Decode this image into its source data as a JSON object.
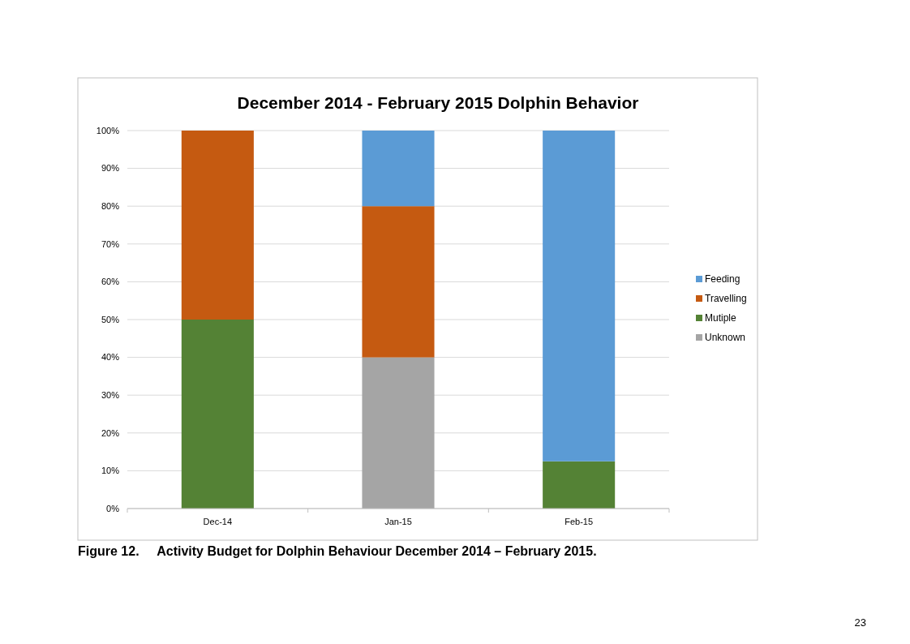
{
  "chart_data": {
    "type": "bar",
    "stacked": true,
    "title": "December 2014 - February 2015 Dolphin Behavior",
    "categories": [
      "Dec-14",
      "Jan-15",
      "Feb-15"
    ],
    "series": [
      {
        "name": "Unknown",
        "color": "#a5a5a5",
        "values": [
          0,
          40,
          0
        ]
      },
      {
        "name": "Mutiple",
        "color": "#548235",
        "values": [
          50,
          0,
          12.5
        ]
      },
      {
        "name": "Travelling",
        "color": "#c55a11",
        "values": [
          50,
          40,
          0
        ]
      },
      {
        "name": "Feeding",
        "color": "#5b9bd5",
        "values": [
          0,
          20,
          87.5
        ]
      }
    ],
    "ylim": [
      0,
      100
    ],
    "yticks": [
      {
        "value": 0,
        "label": "0%"
      },
      {
        "value": 10,
        "label": "10%"
      },
      {
        "value": 20,
        "label": "20%"
      },
      {
        "value": 30,
        "label": "30%"
      },
      {
        "value": 40,
        "label": "40%"
      },
      {
        "value": 50,
        "label": "50%"
      },
      {
        "value": 60,
        "label": "60%"
      },
      {
        "value": 70,
        "label": "70%"
      },
      {
        "value": 80,
        "label": "80%"
      },
      {
        "value": 90,
        "label": "90%"
      },
      {
        "value": 100,
        "label": "100%"
      }
    ],
    "grid": "y",
    "legend": "right",
    "annotations": [
      "Figure 12.     Activity Budget for Dolphin Behaviour December 2014 – February 2015.",
      "23"
    ]
  }
}
